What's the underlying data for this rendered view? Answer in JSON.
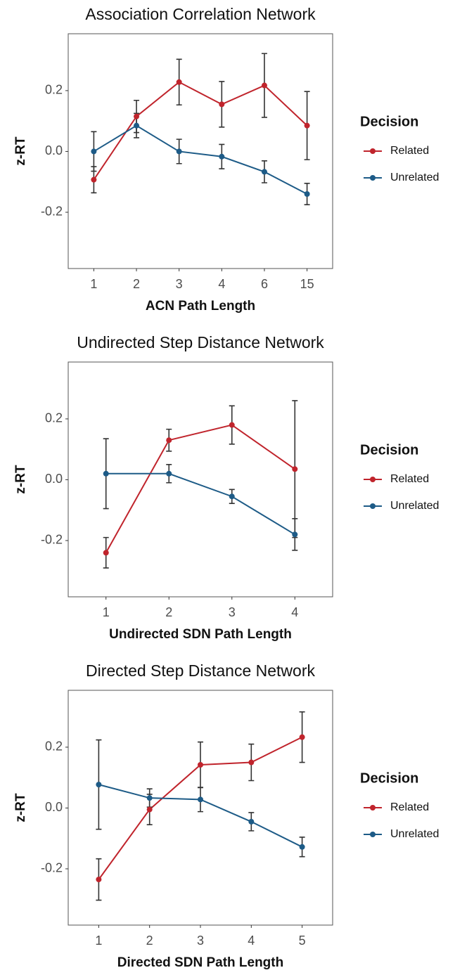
{
  "chart_data": [
    {
      "type": "line",
      "title": "Association Correlation Network",
      "xlabel": "ACN Path Length",
      "ylabel": "z-RT",
      "categories": [
        "1",
        "2",
        "3",
        "4",
        "6",
        "15"
      ],
      "series": [
        {
          "name": "Related",
          "color": "#c0242c",
          "values": [
            -0.093,
            0.115,
            0.228,
            0.155,
            0.217,
            0.085
          ],
          "errors": [
            0.043,
            0.053,
            0.075,
            0.075,
            0.105,
            0.112
          ]
        },
        {
          "name": "Unrelated",
          "color": "#1d5b87",
          "values": [
            0.0,
            0.085,
            0.0,
            -0.017,
            -0.067,
            -0.14
          ],
          "errors": [
            0.065,
            0.04,
            0.04,
            0.04,
            0.036,
            0.035
          ]
        }
      ],
      "ylim": [
        -0.385,
        0.387
      ],
      "yticks": [
        -0.2,
        {
          "value": 0,
          "label": "0.0"
        },
        0.2
      ],
      "legend_title": "Decision",
      "legend": "right"
    },
    {
      "type": "line",
      "title": "Undirected Step Distance Network",
      "xlabel": "Undirected SDN Path Length",
      "ylabel": "z-RT",
      "categories": [
        "1",
        "2",
        "3",
        "4"
      ],
      "series": [
        {
          "name": "Related",
          "color": "#c0242c",
          "values": [
            -0.24,
            0.13,
            0.18,
            0.035
          ],
          "errors": [
            0.05,
            0.036,
            0.063,
            0.225
          ]
        },
        {
          "name": "Unrelated",
          "color": "#1d5b87",
          "values": [
            0.02,
            0.02,
            -0.055,
            -0.18
          ],
          "errors": [
            0.115,
            0.03,
            0.023,
            0.052
          ]
        }
      ],
      "ylim": [
        -0.385,
        0.387
      ],
      "yticks": [
        -0.2,
        {
          "value": 0,
          "label": "0.0"
        },
        0.2
      ],
      "legend_title": "Decision",
      "legend": "right"
    },
    {
      "type": "line",
      "title": "Directed Step Distance Network",
      "xlabel": "Directed SDN Path Length",
      "ylabel": "z-RT",
      "categories": [
        "1",
        "2",
        "3",
        "4",
        "5"
      ],
      "series": [
        {
          "name": "Related",
          "color": "#c0242c",
          "values": [
            -0.235,
            -0.005,
            0.142,
            0.15,
            0.233
          ],
          "errors": [
            0.068,
            0.05,
            0.075,
            0.06,
            0.083
          ]
        },
        {
          "name": "Unrelated",
          "color": "#1d5b87",
          "values": [
            0.077,
            0.033,
            0.028,
            -0.045,
            -0.128
          ],
          "errors": [
            0.147,
            0.03,
            0.04,
            0.03,
            0.032
          ]
        }
      ],
      "ylim": [
        -0.385,
        0.387
      ],
      "yticks": [
        -0.2,
        {
          "value": 0,
          "label": "0.0"
        },
        0.2
      ],
      "legend_title": "Decision",
      "legend": "right"
    }
  ]
}
